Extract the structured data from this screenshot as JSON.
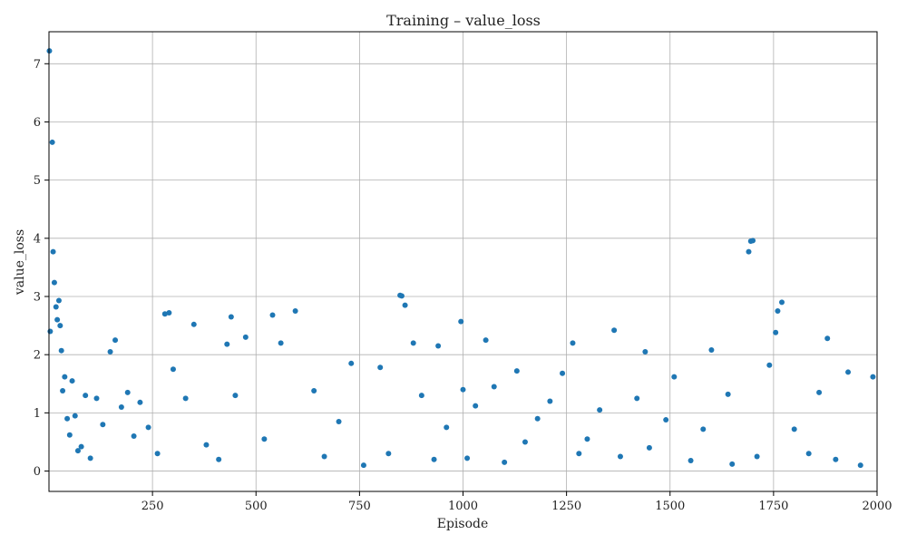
{
  "chart_data": {
    "type": "scatter",
    "title": "Training – value_loss",
    "xlabel": "Episode",
    "ylabel": "value_loss",
    "xlim": [
      0,
      2000
    ],
    "ylim": [
      -0.35,
      7.55
    ],
    "xticks": [
      250,
      500,
      750,
      1000,
      1250,
      1500,
      1750,
      2000
    ],
    "yticks": [
      0,
      1,
      2,
      3,
      4,
      5,
      6,
      7
    ],
    "grid": true,
    "marker_color": "#1f77b4",
    "series": [
      {
        "x": [
          1,
          3,
          8,
          10,
          13,
          17,
          20,
          24,
          27,
          30,
          33,
          38,
          44,
          50,
          56,
          63,
          70,
          78,
          88,
          100,
          115,
          130,
          148,
          160,
          175,
          190,
          205,
          220,
          240,
          262,
          280,
          290,
          300,
          330,
          350,
          380,
          410,
          430,
          440,
          450,
          475,
          520,
          540,
          560,
          595,
          640,
          665,
          700,
          730,
          760,
          800,
          820,
          848,
          852,
          860,
          880,
          900,
          930,
          940,
          960,
          995,
          1000,
          1010,
          1030,
          1055,
          1075,
          1100,
          1130,
          1150,
          1180,
          1210,
          1240,
          1265,
          1280,
          1300,
          1330,
          1365,
          1380,
          1420,
          1440,
          1450,
          1490,
          1510,
          1550,
          1580,
          1600,
          1640,
          1650,
          1690,
          1695,
          1700,
          1710,
          1740,
          1755,
          1760,
          1770,
          1800,
          1835,
          1860,
          1880,
          1900,
          1930,
          1960,
          1990
        ],
        "y": [
          7.22,
          2.4,
          5.65,
          3.77,
          3.24,
          2.82,
          2.6,
          2.93,
          2.5,
          2.07,
          1.38,
          1.62,
          0.9,
          0.62,
          1.55,
          0.95,
          0.35,
          0.42,
          1.3,
          0.22,
          1.25,
          0.8,
          2.05,
          2.25,
          1.1,
          1.35,
          0.6,
          1.18,
          0.75,
          0.3,
          2.7,
          2.72,
          1.75,
          1.25,
          2.52,
          0.45,
          0.2,
          2.18,
          2.65,
          1.3,
          2.3,
          0.55,
          2.68,
          2.2,
          2.75,
          1.38,
          0.25,
          0.85,
          1.85,
          0.1,
          1.78,
          0.3,
          3.02,
          3.01,
          2.85,
          2.2,
          1.3,
          0.2,
          2.15,
          0.75,
          2.57,
          1.4,
          0.22,
          1.12,
          2.25,
          1.45,
          0.15,
          1.72,
          0.5,
          0.9,
          1.2,
          1.68,
          2.2,
          0.3,
          0.55,
          1.05,
          2.42,
          0.25,
          1.25,
          2.05,
          0.4,
          0.88,
          1.62,
          0.18,
          0.72,
          2.08,
          1.32,
          0.12,
          3.77,
          3.95,
          3.96,
          0.25,
          1.82,
          2.38,
          2.75,
          2.9,
          0.72,
          0.3,
          1.35,
          2.28,
          0.2,
          1.7,
          0.1,
          1.62
        ]
      }
    ]
  }
}
